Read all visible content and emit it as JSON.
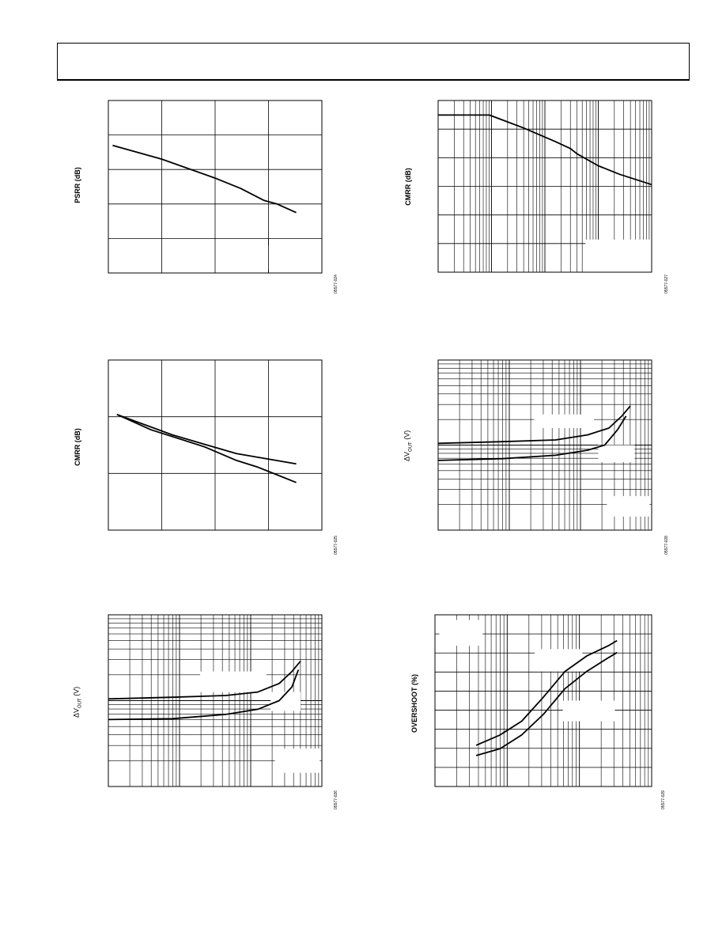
{
  "charts": [
    {
      "id": "psrr-linear",
      "ylabel": "PSRR (dB)",
      "fig_code": "05577-024",
      "grid": {
        "x": "linear",
        "x_div": 4,
        "y_div": 5
      },
      "curves": [
        [
          [
            0.02,
            0.74
          ],
          [
            0.25,
            0.66
          ],
          [
            0.5,
            0.55
          ],
          [
            0.62,
            0.49
          ],
          [
            0.73,
            0.42
          ],
          [
            0.79,
            0.4
          ],
          [
            0.88,
            0.35
          ]
        ]
      ],
      "tick_marks": [
        [
          0.75,
          0.0,
          0.75,
          0.02
        ],
        [
          0.75,
          0.16,
          0.75,
          0.2
        ]
      ]
    },
    {
      "id": "cmrr-log",
      "ylabel": "CMRR (dB)",
      "fig_code": "05577-027",
      "grid": {
        "x": "log",
        "decades": 4,
        "y_div": 6
      },
      "curves": [
        [
          [
            0.0,
            0.915
          ],
          [
            0.24,
            0.915
          ],
          [
            0.4,
            0.84
          ],
          [
            0.55,
            0.76
          ],
          [
            0.62,
            0.72
          ],
          [
            0.65,
            0.69
          ],
          [
            0.75,
            0.62
          ],
          [
            0.85,
            0.57
          ],
          [
            1.0,
            0.51
          ]
        ]
      ],
      "blanks": [
        [
          0.69,
          0.0,
          1.0,
          0.19
        ]
      ]
    },
    {
      "id": "cmrr-linear",
      "ylabel": "CMRR (dB)",
      "fig_code": "05577-025",
      "grid": {
        "x": "linear",
        "x_div": 4,
        "y_div": 3
      },
      "curves": [
        [
          [
            0.04,
            0.68
          ],
          [
            0.3,
            0.56
          ],
          [
            0.6,
            0.45
          ],
          [
            0.88,
            0.39
          ]
        ],
        [
          [
            0.04,
            0.68
          ],
          [
            0.2,
            0.59
          ],
          [
            0.45,
            0.49
          ],
          [
            0.6,
            0.41
          ],
          [
            0.7,
            0.37
          ],
          [
            0.78,
            0.33
          ],
          [
            0.88,
            0.28
          ]
        ]
      ]
    },
    {
      "id": "dvout-log-a",
      "ylabel": "ΔV",
      "ylabel_sub": "OUT",
      "ylabel_unit": " (V)",
      "fig_code": "05577-026",
      "grid": {
        "x": "log",
        "decades": 3,
        "y": "log",
        "y_decades": 2
      },
      "curves": [
        [
          [
            0.0,
            0.51
          ],
          [
            0.3,
            0.52
          ],
          [
            0.55,
            0.53
          ],
          [
            0.7,
            0.55
          ],
          [
            0.8,
            0.6
          ],
          [
            0.86,
            0.67
          ],
          [
            0.9,
            0.73
          ]
        ],
        [
          [
            0.0,
            0.39
          ],
          [
            0.3,
            0.395
          ],
          [
            0.55,
            0.42
          ],
          [
            0.7,
            0.45
          ],
          [
            0.8,
            0.5
          ],
          [
            0.86,
            0.58
          ],
          [
            0.89,
            0.68
          ]
        ]
      ],
      "blanks": [
        [
          0.78,
          0.08,
          0.99,
          0.22
        ],
        [
          0.76,
          0.44,
          0.9,
          0.55
        ],
        [
          0.43,
          0.55,
          0.74,
          0.67
        ]
      ]
    },
    {
      "id": "dvout-log-b",
      "ylabel": "ΔV",
      "ylabel_sub": "OUT",
      "ylabel_unit": " (V)",
      "fig_code": "05577-028",
      "grid": {
        "x": "log",
        "decades": 3,
        "y": "log",
        "y_decades": 2
      },
      "curves": [
        [
          [
            0.0,
            0.51
          ],
          [
            0.3,
            0.52
          ],
          [
            0.55,
            0.53
          ],
          [
            0.7,
            0.56
          ],
          [
            0.8,
            0.6
          ],
          [
            0.86,
            0.67
          ],
          [
            0.9,
            0.73
          ]
        ],
        [
          [
            0.0,
            0.41
          ],
          [
            0.3,
            0.42
          ],
          [
            0.55,
            0.44
          ],
          [
            0.7,
            0.47
          ],
          [
            0.78,
            0.5
          ],
          [
            0.84,
            0.59
          ],
          [
            0.88,
            0.67
          ]
        ]
      ],
      "blanks": [
        [
          0.79,
          0.08,
          0.99,
          0.2
        ],
        [
          0.75,
          0.4,
          0.92,
          0.5
        ],
        [
          0.45,
          0.6,
          0.73,
          0.68
        ]
      ]
    },
    {
      "id": "overshoot-log",
      "ylabel": "OVERSHOOT (%)",
      "fig_code": "05577-029",
      "grid": {
        "x": "log",
        "decades": 3,
        "y_div": 9
      },
      "curves": [
        [
          [
            0.19,
            0.24
          ],
          [
            0.3,
            0.3
          ],
          [
            0.4,
            0.38
          ],
          [
            0.5,
            0.52
          ],
          [
            0.6,
            0.67
          ],
          [
            0.7,
            0.76
          ],
          [
            0.8,
            0.82
          ],
          [
            0.84,
            0.85
          ]
        ],
        [
          [
            0.19,
            0.18
          ],
          [
            0.3,
            0.22
          ],
          [
            0.4,
            0.3
          ],
          [
            0.5,
            0.42
          ],
          [
            0.6,
            0.57
          ],
          [
            0.7,
            0.67
          ],
          [
            0.8,
            0.75
          ],
          [
            0.84,
            0.78
          ]
        ]
      ],
      "blanks": [
        [
          0.02,
          0.82,
          0.22,
          0.97
        ],
        [
          0.46,
          0.67,
          0.68,
          0.8
        ],
        [
          0.59,
          0.38,
          0.83,
          0.5
        ]
      ]
    }
  ]
}
